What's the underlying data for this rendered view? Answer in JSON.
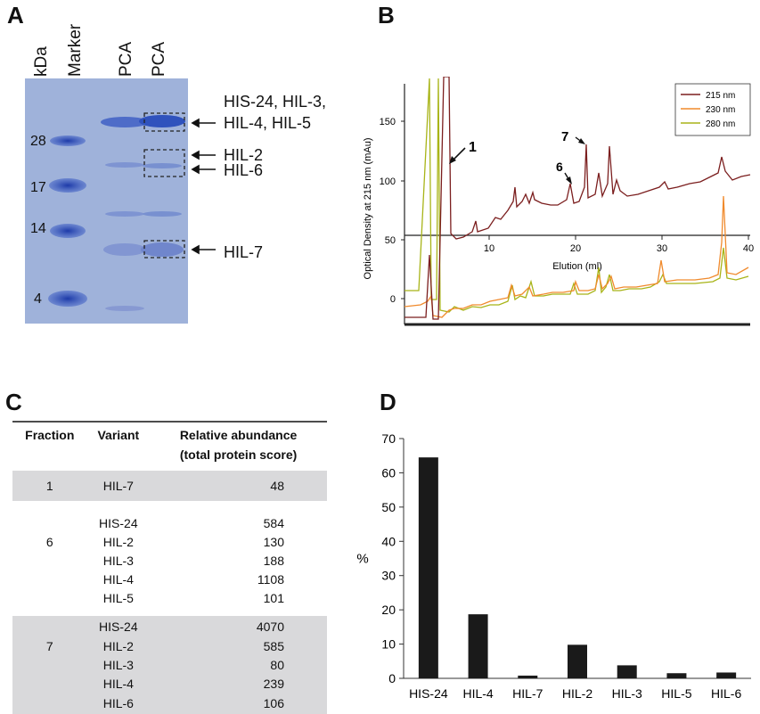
{
  "panels": {
    "a": "A",
    "b": "B",
    "c": "C",
    "d": "D"
  },
  "gel": {
    "kda_label": "kDa",
    "lane_labels": [
      "Marker",
      "PCA",
      "PCA"
    ],
    "mw_markers": [
      "28",
      "17",
      "14",
      "4"
    ],
    "band_annotations": [
      "HIS-24, HIL-3,",
      "HIL-4, HIL-5",
      "HIL-2",
      "HIL-6",
      "HIL-7"
    ]
  },
  "chromatogram": {
    "ylabel": "Optical Density at 215 nm (mAu)",
    "xlabel": "Elution (ml)",
    "upper_yticks": [
      "150",
      "100",
      "50"
    ],
    "lower_yticks": [
      "0"
    ],
    "xticks": [
      "10",
      "20",
      "30",
      "40"
    ],
    "legend": [
      {
        "label": "215 nm",
        "color": "#7b1e1e"
      },
      {
        "label": "230 nm",
        "color": "#f08a2c"
      },
      {
        "label": "280 nm",
        "color": "#a8b418"
      }
    ],
    "peak_labels": [
      "1",
      "6",
      "7"
    ]
  },
  "table": {
    "headers": [
      "Fraction",
      "Variant",
      "Relative abundance",
      "(total protein score)"
    ],
    "groups": [
      {
        "fraction": "1",
        "rows": [
          {
            "variant": "HIL-7",
            "score": "48"
          }
        ]
      },
      {
        "fraction": "6",
        "rows": [
          {
            "variant": "HIS-24",
            "score": "584"
          },
          {
            "variant": "HIL-2",
            "score": "130"
          },
          {
            "variant": "HIL-3",
            "score": "188"
          },
          {
            "variant": "HIL-4",
            "score": "1108"
          },
          {
            "variant": "HIL-5",
            "score": "101"
          }
        ]
      },
      {
        "fraction": "7",
        "rows": [
          {
            "variant": "HIS-24",
            "score": "4070"
          },
          {
            "variant": "HIL-2",
            "score": "585"
          },
          {
            "variant": "HIL-3",
            "score": "80"
          },
          {
            "variant": "HIL-4",
            "score": "239"
          },
          {
            "variant": "HIL-6",
            "score": "106"
          }
        ]
      }
    ]
  },
  "chart_data": {
    "type": "bar",
    "categories": [
      "HIS-24",
      "HIL-4",
      "HIL-7",
      "HIL-2",
      "HIL-3",
      "HIL-5",
      "HIL-6"
    ],
    "values": [
      64.5,
      18.7,
      0.8,
      9.8,
      3.8,
      1.5,
      1.7
    ],
    "xlabel": "",
    "ylabel": "%",
    "ylim": [
      0,
      70
    ],
    "yticks": [
      0,
      10,
      20,
      30,
      40,
      50,
      60,
      70
    ],
    "bar_color": "#1a1a1a"
  }
}
